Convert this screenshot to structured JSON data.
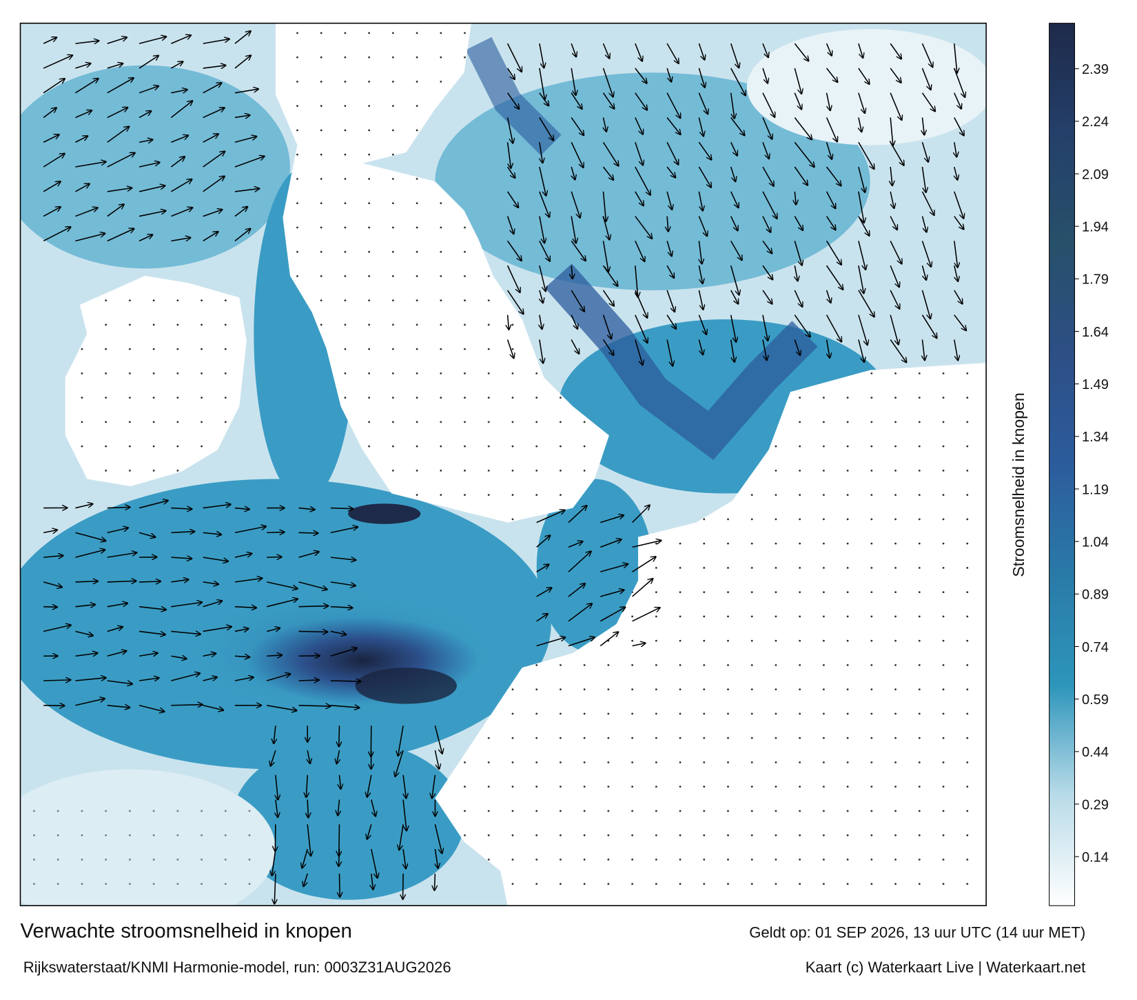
{
  "map": {
    "title": "Verwachte stroomsnelheid in knopen",
    "valid": "Geldt op: 01 SEP 2026, 13 uur UTC (14 uur MET)",
    "source": "Rijkswaterstaat/KNMI Harmonie-model, run: 0003Z31AUG2026",
    "credit": "Kaart (c) Waterkaart Live | Waterkaart.net"
  },
  "colorbar": {
    "label": "Stroomsnelheid in knopen",
    "lim": [
      0,
      2.52
    ],
    "ticks": [
      0.14,
      0.29,
      0.44,
      0.59,
      0.74,
      0.89,
      1.04,
      1.19,
      1.34,
      1.49,
      1.64,
      1.79,
      1.94,
      2.09,
      2.24,
      2.39
    ],
    "colors": [
      "#ffffff",
      "#b9dbe8",
      "#2d95bb",
      "#2a7aa8",
      "#2c5c9c",
      "#2d4f86",
      "#27506a",
      "#24406a",
      "#1e2a4a"
    ]
  }
}
